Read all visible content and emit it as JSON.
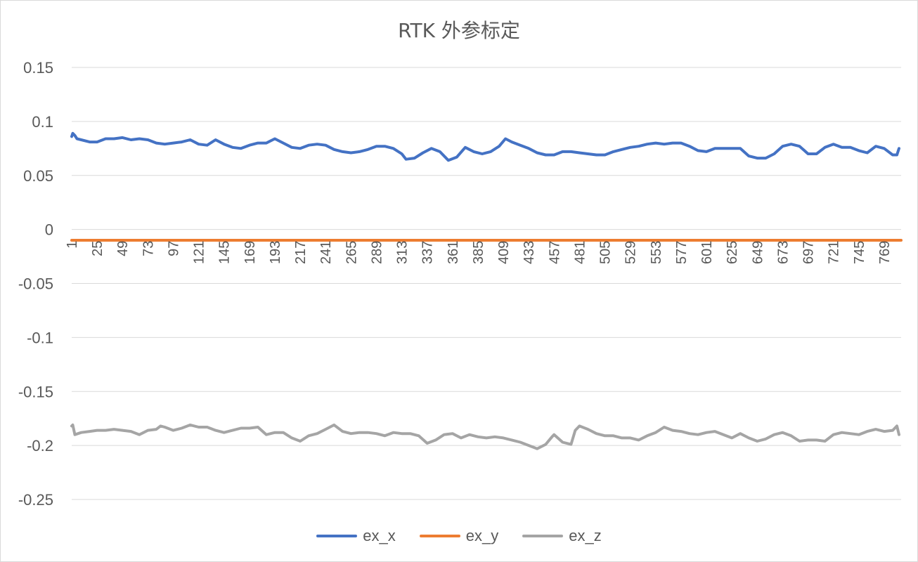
{
  "chart_data": {
    "type": "line",
    "title": "RTK 外参标定",
    "xlabel": "",
    "ylabel": "",
    "ylim": [
      -0.25,
      0.15
    ],
    "yticks": [
      0.15,
      0.1,
      0.05,
      0,
      -0.05,
      -0.1,
      -0.15,
      -0.2,
      -0.25
    ],
    "ytick_labels": [
      "0.15",
      "0.1",
      "0.05",
      "0",
      "-0.05",
      "-0.1",
      "-0.15",
      "-0.2",
      "-0.25"
    ],
    "xlim": [
      1,
      785
    ],
    "xticks": [
      1,
      25,
      49,
      73,
      97,
      121,
      145,
      169,
      193,
      217,
      241,
      265,
      289,
      313,
      337,
      361,
      385,
      409,
      433,
      457,
      481,
      505,
      529,
      553,
      577,
      601,
      625,
      649,
      673,
      697,
      721,
      745,
      769
    ],
    "grid": true,
    "legend_position": "bottom",
    "series": [
      {
        "name": "ex_x",
        "color": "#4472c4",
        "points": [
          [
            1,
            0.086
          ],
          [
            2,
            0.089
          ],
          [
            4,
            0.087
          ],
          [
            6,
            0.084
          ],
          [
            10,
            0.083
          ],
          [
            18,
            0.081
          ],
          [
            25,
            0.081
          ],
          [
            33,
            0.084
          ],
          [
            41,
            0.084
          ],
          [
            49,
            0.085
          ],
          [
            57,
            0.083
          ],
          [
            65,
            0.084
          ],
          [
            73,
            0.083
          ],
          [
            81,
            0.08
          ],
          [
            89,
            0.079
          ],
          [
            97,
            0.08
          ],
          [
            105,
            0.081
          ],
          [
            113,
            0.083
          ],
          [
            121,
            0.079
          ],
          [
            129,
            0.078
          ],
          [
            137,
            0.083
          ],
          [
            145,
            0.079
          ],
          [
            153,
            0.076
          ],
          [
            161,
            0.075
          ],
          [
            169,
            0.078
          ],
          [
            177,
            0.08
          ],
          [
            185,
            0.08
          ],
          [
            193,
            0.084
          ],
          [
            201,
            0.08
          ],
          [
            209,
            0.076
          ],
          [
            217,
            0.075
          ],
          [
            225,
            0.078
          ],
          [
            233,
            0.079
          ],
          [
            241,
            0.078
          ],
          [
            249,
            0.074
          ],
          [
            257,
            0.072
          ],
          [
            265,
            0.071
          ],
          [
            273,
            0.072
          ],
          [
            281,
            0.074
          ],
          [
            289,
            0.077
          ],
          [
            297,
            0.077
          ],
          [
            305,
            0.075
          ],
          [
            313,
            0.07
          ],
          [
            317,
            0.065
          ],
          [
            325,
            0.066
          ],
          [
            333,
            0.071
          ],
          [
            341,
            0.075
          ],
          [
            349,
            0.072
          ],
          [
            357,
            0.064
          ],
          [
            365,
            0.067
          ],
          [
            373,
            0.076
          ],
          [
            381,
            0.072
          ],
          [
            389,
            0.07
          ],
          [
            397,
            0.072
          ],
          [
            405,
            0.077
          ],
          [
            411,
            0.084
          ],
          [
            417,
            0.081
          ],
          [
            425,
            0.078
          ],
          [
            433,
            0.075
          ],
          [
            441,
            0.071
          ],
          [
            449,
            0.069
          ],
          [
            457,
            0.069
          ],
          [
            465,
            0.072
          ],
          [
            473,
            0.072
          ],
          [
            481,
            0.071
          ],
          [
            489,
            0.07
          ],
          [
            497,
            0.069
          ],
          [
            505,
            0.069
          ],
          [
            513,
            0.072
          ],
          [
            521,
            0.074
          ],
          [
            529,
            0.076
          ],
          [
            537,
            0.077
          ],
          [
            545,
            0.079
          ],
          [
            553,
            0.08
          ],
          [
            561,
            0.079
          ],
          [
            569,
            0.08
          ],
          [
            577,
            0.08
          ],
          [
            585,
            0.077
          ],
          [
            593,
            0.073
          ],
          [
            601,
            0.072
          ],
          [
            609,
            0.075
          ],
          [
            617,
            0.075
          ],
          [
            625,
            0.075
          ],
          [
            633,
            0.075
          ],
          [
            641,
            0.068
          ],
          [
            649,
            0.066
          ],
          [
            657,
            0.066
          ],
          [
            665,
            0.07
          ],
          [
            673,
            0.077
          ],
          [
            681,
            0.079
          ],
          [
            689,
            0.077
          ],
          [
            697,
            0.07
          ],
          [
            705,
            0.07
          ],
          [
            713,
            0.076
          ],
          [
            721,
            0.079
          ],
          [
            729,
            0.076
          ],
          [
            737,
            0.076
          ],
          [
            745,
            0.073
          ],
          [
            753,
            0.071
          ],
          [
            761,
            0.077
          ],
          [
            769,
            0.075
          ],
          [
            777,
            0.069
          ],
          [
            781,
            0.069
          ],
          [
            783,
            0.075
          ]
        ]
      },
      {
        "name": "ex_y",
        "color": "#ed7d31",
        "points": [
          [
            1,
            -0.01
          ],
          [
            785,
            -0.01
          ]
        ]
      },
      {
        "name": "ex_z",
        "color": "#a5a5a5",
        "points": [
          [
            1,
            -0.182
          ],
          [
            2,
            -0.181
          ],
          [
            4,
            -0.19
          ],
          [
            10,
            -0.188
          ],
          [
            18,
            -0.187
          ],
          [
            25,
            -0.186
          ],
          [
            33,
            -0.186
          ],
          [
            41,
            -0.185
          ],
          [
            49,
            -0.186
          ],
          [
            57,
            -0.187
          ],
          [
            65,
            -0.19
          ],
          [
            73,
            -0.186
          ],
          [
            81,
            -0.185
          ],
          [
            85,
            -0.182
          ],
          [
            89,
            -0.183
          ],
          [
            97,
            -0.186
          ],
          [
            105,
            -0.184
          ],
          [
            113,
            -0.181
          ],
          [
            121,
            -0.183
          ],
          [
            129,
            -0.183
          ],
          [
            137,
            -0.186
          ],
          [
            145,
            -0.188
          ],
          [
            153,
            -0.186
          ],
          [
            161,
            -0.184
          ],
          [
            169,
            -0.184
          ],
          [
            177,
            -0.183
          ],
          [
            185,
            -0.19
          ],
          [
            193,
            -0.188
          ],
          [
            201,
            -0.188
          ],
          [
            209,
            -0.193
          ],
          [
            217,
            -0.196
          ],
          [
            225,
            -0.191
          ],
          [
            233,
            -0.189
          ],
          [
            241,
            -0.185
          ],
          [
            249,
            -0.181
          ],
          [
            257,
            -0.187
          ],
          [
            265,
            -0.189
          ],
          [
            273,
            -0.188
          ],
          [
            281,
            -0.188
          ],
          [
            289,
            -0.189
          ],
          [
            297,
            -0.191
          ],
          [
            305,
            -0.188
          ],
          [
            313,
            -0.189
          ],
          [
            321,
            -0.189
          ],
          [
            329,
            -0.191
          ],
          [
            337,
            -0.198
          ],
          [
            345,
            -0.195
          ],
          [
            353,
            -0.19
          ],
          [
            361,
            -0.189
          ],
          [
            369,
            -0.193
          ],
          [
            377,
            -0.19
          ],
          [
            385,
            -0.192
          ],
          [
            393,
            -0.193
          ],
          [
            401,
            -0.192
          ],
          [
            409,
            -0.193
          ],
          [
            417,
            -0.195
          ],
          [
            425,
            -0.197
          ],
          [
            433,
            -0.2
          ],
          [
            441,
            -0.203
          ],
          [
            449,
            -0.199
          ],
          [
            455,
            -0.192
          ],
          [
            457,
            -0.19
          ],
          [
            465,
            -0.197
          ],
          [
            473,
            -0.199
          ],
          [
            477,
            -0.186
          ],
          [
            481,
            -0.182
          ],
          [
            489,
            -0.185
          ],
          [
            497,
            -0.189
          ],
          [
            505,
            -0.191
          ],
          [
            513,
            -0.191
          ],
          [
            521,
            -0.193
          ],
          [
            529,
            -0.193
          ],
          [
            537,
            -0.195
          ],
          [
            545,
            -0.191
          ],
          [
            553,
            -0.188
          ],
          [
            561,
            -0.183
          ],
          [
            569,
            -0.186
          ],
          [
            577,
            -0.187
          ],
          [
            585,
            -0.189
          ],
          [
            593,
            -0.19
          ],
          [
            601,
            -0.188
          ],
          [
            609,
            -0.187
          ],
          [
            617,
            -0.19
          ],
          [
            625,
            -0.193
          ],
          [
            633,
            -0.189
          ],
          [
            641,
            -0.193
          ],
          [
            649,
            -0.196
          ],
          [
            657,
            -0.194
          ],
          [
            665,
            -0.19
          ],
          [
            673,
            -0.188
          ],
          [
            681,
            -0.191
          ],
          [
            689,
            -0.196
          ],
          [
            697,
            -0.195
          ],
          [
            705,
            -0.195
          ],
          [
            713,
            -0.196
          ],
          [
            721,
            -0.19
          ],
          [
            729,
            -0.188
          ],
          [
            737,
            -0.189
          ],
          [
            745,
            -0.19
          ],
          [
            753,
            -0.187
          ],
          [
            761,
            -0.185
          ],
          [
            769,
            -0.187
          ],
          [
            777,
            -0.186
          ],
          [
            781,
            -0.182
          ],
          [
            783,
            -0.19
          ]
        ]
      }
    ]
  }
}
